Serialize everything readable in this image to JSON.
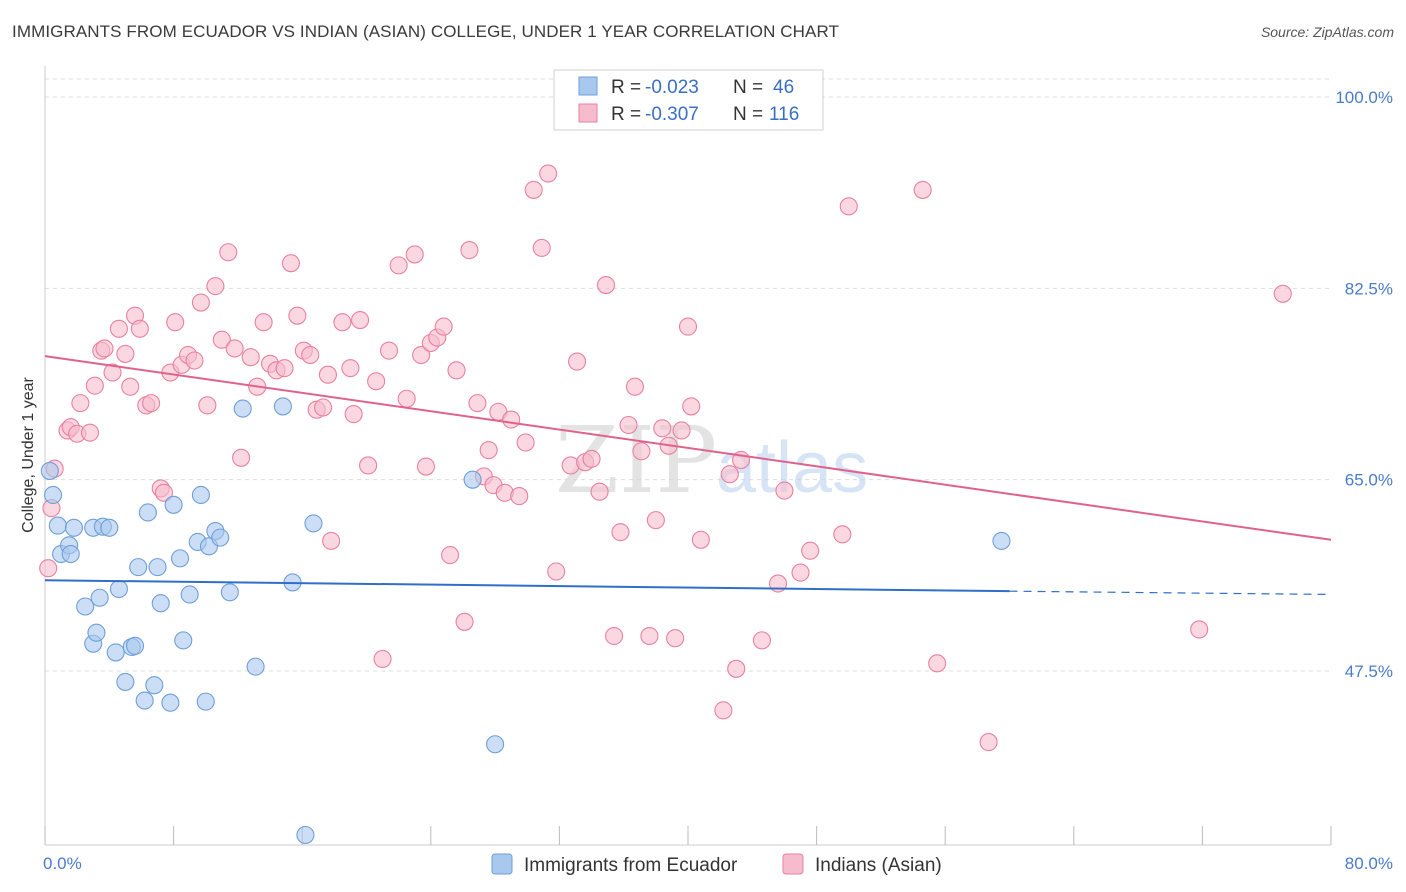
{
  "title": "IMMIGRANTS FROM ECUADOR VS INDIAN (ASIAN) COLLEGE, UNDER 1 YEAR CORRELATION CHART",
  "source": "Source: ZipAtlas.com",
  "watermark": {
    "zip": "ZIP",
    "atlas": "atlas"
  },
  "colors": {
    "ecuador_fill": "#a9c8ee",
    "ecuador_stroke": "#6f9fd8",
    "ecuador_line": "#2f6fc9",
    "indian_fill": "#f6bccd",
    "indian_stroke": "#e8819f",
    "indian_line": "#e0628c",
    "tick_label": "#4a7cc9",
    "grid": "#dddddd"
  },
  "legend": {
    "rows": [
      {
        "r_label": "R = ",
        "r_value": "-0.023",
        "n_label": "N = ",
        "n_value": "46"
      },
      {
        "r_label": "R = ",
        "r_value": "-0.307",
        "n_label": "N = ",
        "n_value": "116"
      }
    ]
  },
  "chart_data": {
    "type": "scatter",
    "title": "IMMIGRANTS FROM ECUADOR VS INDIAN (ASIAN) COLLEGE, UNDER 1 YEAR CORRELATION CHART",
    "xlabel": "",
    "ylabel": "College, Under 1 year",
    "xlim": [
      0,
      80
    ],
    "ylim": [
      30,
      102
    ],
    "x_tick_labels": [
      "0.0%",
      "80.0%"
    ],
    "y_tick_labels": [
      "47.5%",
      "65.0%",
      "82.5%",
      "100.0%"
    ],
    "y_ticks": [
      47.5,
      65.0,
      82.5,
      100.0
    ],
    "x_ticks": [
      0,
      8,
      16,
      24,
      32,
      40,
      48,
      56,
      64,
      72,
      80
    ],
    "grid": true,
    "legend_position": "top-center",
    "series": [
      {
        "name": "Immigrants from Ecuador",
        "r": -0.023,
        "n": 46,
        "trend": {
          "x": [
            0,
            60
          ],
          "y": [
            55.8,
            54.8
          ],
          "dashed_to_x": 80,
          "dashed_y": 54.5
        },
        "points": [
          [
            0.3,
            65.8
          ],
          [
            0.5,
            63.6
          ],
          [
            0.8,
            60.8
          ],
          [
            1.0,
            58.2
          ],
          [
            1.5,
            59.0
          ],
          [
            1.6,
            58.2
          ],
          [
            1.8,
            60.6
          ],
          [
            2.5,
            53.4
          ],
          [
            3.0,
            60.6
          ],
          [
            3.0,
            50.0
          ],
          [
            3.2,
            51.0
          ],
          [
            3.4,
            54.2
          ],
          [
            3.6,
            60.7
          ],
          [
            4.0,
            60.6
          ],
          [
            4.4,
            49.2
          ],
          [
            4.6,
            55.0
          ],
          [
            5.0,
            46.5
          ],
          [
            5.4,
            49.7
          ],
          [
            5.6,
            49.8
          ],
          [
            5.8,
            57.0
          ],
          [
            6.2,
            44.8
          ],
          [
            6.4,
            62.0
          ],
          [
            6.8,
            46.2
          ],
          [
            7.0,
            57.0
          ],
          [
            7.2,
            53.7
          ],
          [
            7.8,
            44.6
          ],
          [
            8.0,
            62.7
          ],
          [
            8.4,
            57.8
          ],
          [
            8.6,
            50.3
          ],
          [
            9.0,
            54.5
          ],
          [
            9.5,
            59.3
          ],
          [
            9.7,
            63.6
          ],
          [
            10.0,
            44.7
          ],
          [
            10.2,
            58.9
          ],
          [
            10.6,
            60.3
          ],
          [
            10.9,
            59.7
          ],
          [
            11.5,
            54.7
          ],
          [
            12.3,
            71.5
          ],
          [
            13.1,
            47.9
          ],
          [
            14.8,
            71.7
          ],
          [
            15.4,
            55.6
          ],
          [
            16.2,
            32.5
          ],
          [
            16.7,
            61.0
          ],
          [
            26.6,
            65.0
          ],
          [
            28.0,
            40.8
          ],
          [
            59.5,
            59.4
          ]
        ]
      },
      {
        "name": "Indians (Asian)",
        "r": -0.307,
        "n": 116,
        "trend": {
          "x": [
            0,
            80
          ],
          "y": [
            76.3,
            59.5
          ]
        },
        "points": [
          [
            0.2,
            56.9
          ],
          [
            0.4,
            62.4
          ],
          [
            0.6,
            66.0
          ],
          [
            1.4,
            69.5
          ],
          [
            1.6,
            69.8
          ],
          [
            2.0,
            69.2
          ],
          [
            2.2,
            72.0
          ],
          [
            2.8,
            69.3
          ],
          [
            3.1,
            73.6
          ],
          [
            3.5,
            76.8
          ],
          [
            3.7,
            77.0
          ],
          [
            4.2,
            74.8
          ],
          [
            4.6,
            78.8
          ],
          [
            5.0,
            76.5
          ],
          [
            5.3,
            73.5
          ],
          [
            5.6,
            80.0
          ],
          [
            5.9,
            78.8
          ],
          [
            6.3,
            71.8
          ],
          [
            6.6,
            72.0
          ],
          [
            7.2,
            64.2
          ],
          [
            7.4,
            63.8
          ],
          [
            7.8,
            74.8
          ],
          [
            8.1,
            79.4
          ],
          [
            8.5,
            75.5
          ],
          [
            8.9,
            76.4
          ],
          [
            9.3,
            75.9
          ],
          [
            9.7,
            81.2
          ],
          [
            10.1,
            71.8
          ],
          [
            10.6,
            82.7
          ],
          [
            11.0,
            77.8
          ],
          [
            11.4,
            85.8
          ],
          [
            11.8,
            77.0
          ],
          [
            12.2,
            67.0
          ],
          [
            12.8,
            76.2
          ],
          [
            13.2,
            73.5
          ],
          [
            13.6,
            79.4
          ],
          [
            14.0,
            75.6
          ],
          [
            14.4,
            75.0
          ],
          [
            14.9,
            75.2
          ],
          [
            15.3,
            84.8
          ],
          [
            15.7,
            80.0
          ],
          [
            16.1,
            76.8
          ],
          [
            16.5,
            76.4
          ],
          [
            16.9,
            71.4
          ],
          [
            17.3,
            71.6
          ],
          [
            17.6,
            74.6
          ],
          [
            17.8,
            59.4
          ],
          [
            18.5,
            79.4
          ],
          [
            19.0,
            75.2
          ],
          [
            19.2,
            71.0
          ],
          [
            19.6,
            79.6
          ],
          [
            20.1,
            66.3
          ],
          [
            20.6,
            74.0
          ],
          [
            21.0,
            48.6
          ],
          [
            21.4,
            76.8
          ],
          [
            22.0,
            84.6
          ],
          [
            22.5,
            72.4
          ],
          [
            23.0,
            85.6
          ],
          [
            23.4,
            76.4
          ],
          [
            23.7,
            66.2
          ],
          [
            24.0,
            77.5
          ],
          [
            24.4,
            78.0
          ],
          [
            24.8,
            79.0
          ],
          [
            25.2,
            58.1
          ],
          [
            25.6,
            75.0
          ],
          [
            26.1,
            52.0
          ],
          [
            26.4,
            86.0
          ],
          [
            26.9,
            72.0
          ],
          [
            27.3,
            65.3
          ],
          [
            27.6,
            67.7
          ],
          [
            27.9,
            64.5
          ],
          [
            28.2,
            71.2
          ],
          [
            28.6,
            63.8
          ],
          [
            29.0,
            70.5
          ],
          [
            29.5,
            63.5
          ],
          [
            29.9,
            68.4
          ],
          [
            30.4,
            91.5
          ],
          [
            30.9,
            86.2
          ],
          [
            31.3,
            93.0
          ],
          [
            31.8,
            56.6
          ],
          [
            32.2,
            100.0
          ],
          [
            32.7,
            66.3
          ],
          [
            33.1,
            75.8
          ],
          [
            33.6,
            66.6
          ],
          [
            34.0,
            66.9
          ],
          [
            34.5,
            63.9
          ],
          [
            34.9,
            82.8
          ],
          [
            35.4,
            50.7
          ],
          [
            35.8,
            60.2
          ],
          [
            36.3,
            70.0
          ],
          [
            36.7,
            73.5
          ],
          [
            37.1,
            67.6
          ],
          [
            37.6,
            50.7
          ],
          [
            38.0,
            61.3
          ],
          [
            38.4,
            69.7
          ],
          [
            38.8,
            68.1
          ],
          [
            39.2,
            50.5
          ],
          [
            39.6,
            69.5
          ],
          [
            40.0,
            79.0
          ],
          [
            40.2,
            71.7
          ],
          [
            40.8,
            59.5
          ],
          [
            42.2,
            43.9
          ],
          [
            42.6,
            65.5
          ],
          [
            43.0,
            47.7
          ],
          [
            43.3,
            66.8
          ],
          [
            44.6,
            50.3
          ],
          [
            45.6,
            55.5
          ],
          [
            46.0,
            64.0
          ],
          [
            47.0,
            56.5
          ],
          [
            47.6,
            58.5
          ],
          [
            49.6,
            60.0
          ],
          [
            50.0,
            90.0
          ],
          [
            54.6,
            91.5
          ],
          [
            55.5,
            48.2
          ],
          [
            58.7,
            41.0
          ],
          [
            71.8,
            51.3
          ],
          [
            77.0,
            82.0
          ]
        ]
      }
    ]
  },
  "bottom_legend": [
    {
      "label": "Immigrants from Ecuador"
    },
    {
      "label": "Indians (Asian)"
    }
  ]
}
